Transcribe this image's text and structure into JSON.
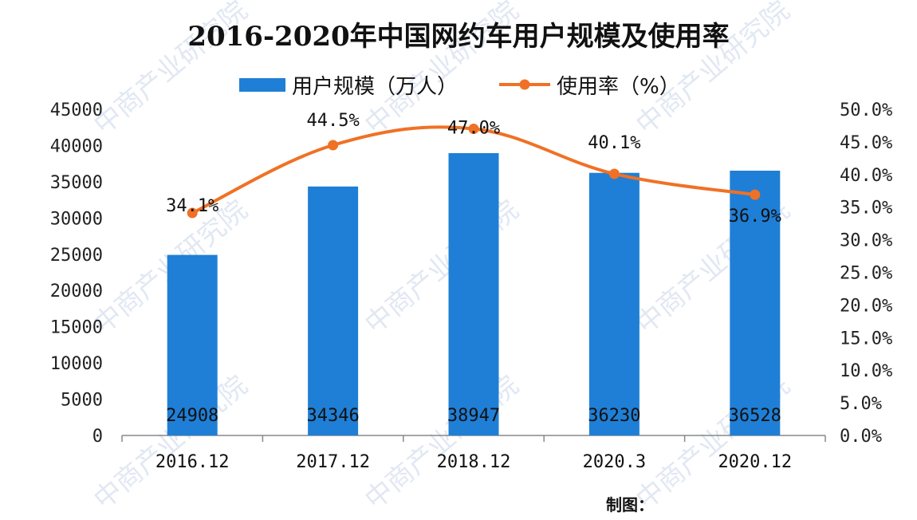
{
  "chart_data": {
    "type": "bar",
    "title": "2016-2020年中国网约车用户规模及使用率",
    "categories": [
      "2016.12",
      "2017.12",
      "2018.12",
      "2020.3",
      "2020.12"
    ],
    "series": [
      {
        "name": "用户规模（万人）",
        "type": "bar",
        "axis": "left",
        "values": [
          24908,
          34346,
          38947,
          36230,
          36528
        ],
        "color": "#1f7fd6"
      },
      {
        "name": "使用率（%）",
        "type": "line",
        "axis": "right",
        "values": [
          34.1,
          44.5,
          47.0,
          40.1,
          36.9
        ],
        "labels": [
          "34.1%",
          "44.5%",
          "47.0%",
          "40.1%",
          "36.9%"
        ],
        "color": "#f07125"
      }
    ],
    "y_left": {
      "lim": [
        0,
        45000
      ],
      "ticks": [
        "0",
        "5000",
        "10000",
        "15000",
        "20000",
        "25000",
        "30000",
        "35000",
        "40000",
        "45000"
      ]
    },
    "y_right": {
      "lim": [
        0,
        50
      ],
      "ticks": [
        "0.0%",
        "5.0%",
        "10.0%",
        "15.0%",
        "20.0%",
        "25.0%",
        "30.0%",
        "35.0%",
        "40.0%",
        "45.0%",
        "50.0%"
      ]
    },
    "legend_position": "top",
    "grid": false
  },
  "footer": {
    "source": "制图："
  },
  "watermark": {
    "text": "中商产业研究院",
    "color": "#c9d6ea"
  }
}
